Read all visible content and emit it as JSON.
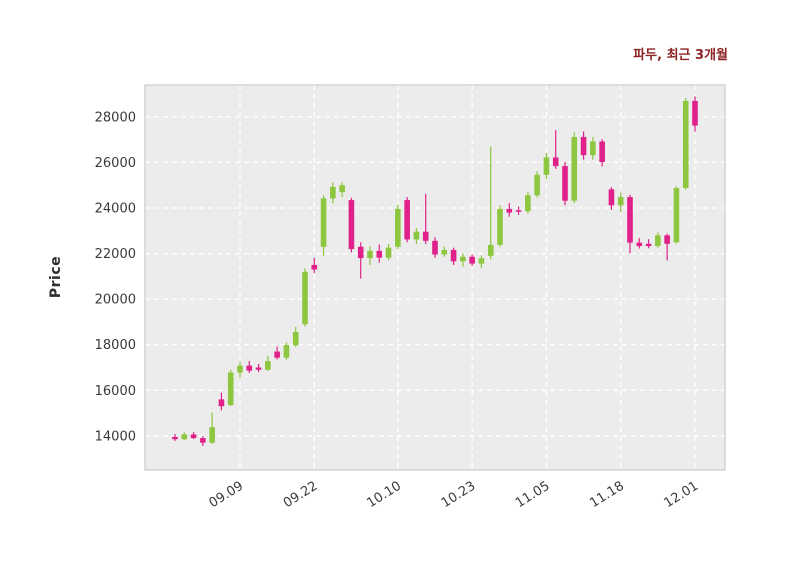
{
  "chart_data": {
    "type": "candlestick",
    "title": "파두, 최근 3개월",
    "ylabel": "Price",
    "xlabel": "",
    "ylim": [
      12500,
      29400
    ],
    "yticks": [
      14000,
      16000,
      18000,
      20000,
      22000,
      24000,
      26000,
      28000
    ],
    "xticks": [
      {
        "index": 7,
        "label": "09.09"
      },
      {
        "index": 15,
        "label": "09.22"
      },
      {
        "index": 24,
        "label": "10.10"
      },
      {
        "index": 32,
        "label": "10.23"
      },
      {
        "index": 40,
        "label": "11.05"
      },
      {
        "index": 48,
        "label": "11.18"
      },
      {
        "index": 56,
        "label": "12.01"
      }
    ],
    "grid": "dashed",
    "legend": "none",
    "candles": [
      [
        13950,
        14080,
        13780,
        13850
      ],
      [
        13850,
        14150,
        13800,
        14060
      ],
      [
        14060,
        14160,
        13860,
        13900
      ],
      [
        13900,
        13990,
        13560,
        13700
      ],
      [
        13700,
        15020,
        13650,
        14380
      ],
      [
        15600,
        15900,
        15120,
        15300
      ],
      [
        15350,
        16900,
        15300,
        16780
      ],
      [
        16780,
        17250,
        16550,
        17080
      ],
      [
        17080,
        17280,
        16760,
        16860
      ],
      [
        17000,
        17160,
        16800,
        16900
      ],
      [
        16900,
        17520,
        16850,
        17280
      ],
      [
        17700,
        17920,
        17350,
        17430
      ],
      [
        17430,
        18100,
        17330,
        17980
      ],
      [
        17980,
        18780,
        17900,
        18560
      ],
      [
        18900,
        21350,
        18800,
        21200
      ],
      [
        21500,
        21820,
        21150,
        21300
      ],
      [
        22300,
        24550,
        21900,
        24420
      ],
      [
        24420,
        25120,
        24200,
        24930
      ],
      [
        24700,
        25150,
        24480,
        25000
      ],
      [
        24350,
        24450,
        22050,
        22200
      ],
      [
        22300,
        22500,
        20900,
        21800
      ],
      [
        21800,
        22320,
        21500,
        22120
      ],
      [
        22120,
        22400,
        21600,
        21820
      ],
      [
        21820,
        22420,
        21700,
        22260
      ],
      [
        22300,
        24150,
        22200,
        23960
      ],
      [
        24350,
        24480,
        22500,
        22620
      ],
      [
        22620,
        23120,
        22420,
        22960
      ],
      [
        22960,
        24620,
        22420,
        22560
      ],
      [
        22560,
        22720,
        21820,
        21960
      ],
      [
        21960,
        22320,
        21860,
        22160
      ],
      [
        22160,
        22260,
        21500,
        21660
      ],
      [
        21660,
        22020,
        21420,
        21860
      ],
      [
        21860,
        21960,
        21460,
        21560
      ],
      [
        21560,
        21920,
        21360,
        21800
      ],
      [
        21900,
        26700,
        21750,
        22380
      ],
      [
        22380,
        24120,
        22300,
        23960
      ],
      [
        23960,
        24220,
        23620,
        23800
      ],
      [
        23900,
        24060,
        23700,
        23860
      ],
      [
        23860,
        24720,
        23760,
        24560
      ],
      [
        24560,
        25620,
        24460,
        25460
      ],
      [
        25460,
        26420,
        25260,
        26220
      ],
      [
        26220,
        27420,
        25720,
        25840
      ],
      [
        25840,
        26020,
        24120,
        24320
      ],
      [
        24320,
        27320,
        24220,
        27120
      ],
      [
        27120,
        27360,
        26120,
        26320
      ],
      [
        26320,
        27120,
        26120,
        26920
      ],
      [
        26920,
        27020,
        25820,
        26020
      ],
      [
        24820,
        24920,
        23920,
        24120
      ],
      [
        24120,
        24680,
        23820,
        24480
      ],
      [
        24480,
        24580,
        22020,
        22480
      ],
      [
        22480,
        22680,
        22220,
        22330
      ],
      [
        22430,
        22630,
        22230,
        22330
      ],
      [
        22330,
        22930,
        22260,
        22800
      ],
      [
        22800,
        22880,
        21700,
        22430
      ],
      [
        22500,
        24950,
        22430,
        24880
      ],
      [
        24880,
        28830,
        24800,
        28700
      ],
      [
        28700,
        28900,
        27350,
        27620
      ]
    ],
    "colors": {
      "up": "#8dc63f",
      "down": "#e0218a",
      "plot_bg": "#ececec",
      "grid": "#ffffff",
      "frame": "#cccccc",
      "title": "#8b2323",
      "tick_text": "#3a3a3a"
    }
  }
}
